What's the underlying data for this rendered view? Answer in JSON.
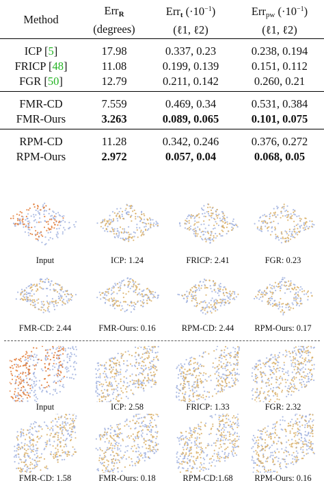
{
  "table": {
    "headers": [
      {
        "main": "Method",
        "symbol": "",
        "sub": "",
        "suffix": "",
        "line2": ""
      },
      {
        "main": "Err",
        "symbol": "",
        "sub": "R",
        "suffix": "",
        "line2": "(degrees)"
      },
      {
        "main": "Err",
        "symbol": "",
        "sub": "t",
        "suffix": "(·10",
        "sup": "−1",
        "close": ")",
        "line2": "(ℓ1, ℓ2)"
      },
      {
        "main": "Err",
        "symbol": "",
        "sub": "pw",
        "suffix": "(·10",
        "sup": "−1",
        "close": ")",
        "line2": "(ℓ1, ℓ2)"
      }
    ],
    "rows": [
      {
        "method": "ICP",
        "cite": "5",
        "r": "17.98",
        "t": "0.337, 0.23",
        "pw": "0.238, 0.194",
        "bold": false
      },
      {
        "method": "FRICP",
        "cite": "48",
        "r": "11.08",
        "t": "0.199, 0.139",
        "pw": "0.151, 0.112",
        "bold": false
      },
      {
        "method": "FGR",
        "cite": "50",
        "r": "12.79",
        "t": "0.211, 0.142",
        "pw": "0.260, 0.21",
        "bold": false
      },
      {
        "method": "FMR-CD",
        "cite": "",
        "r": "7.559",
        "t": "0.469, 0.34",
        "pw": "0.531, 0.384",
        "bold": false
      },
      {
        "method": "FMR-Ours",
        "cite": "",
        "r": "3.263",
        "t": "0.089, 0.065",
        "pw": "0.101, 0.075",
        "bold": true
      },
      {
        "method": "RPM-CD",
        "cite": "",
        "r": "11.28",
        "t": "0.342, 0.246",
        "pw": "0.376, 0.272",
        "bold": false
      },
      {
        "method": "RPM-Ours",
        "cite": "",
        "r": "2.972",
        "t": "0.057, 0.04",
        "pw": "0.068, 0.05",
        "bold": true
      }
    ]
  },
  "figure": {
    "colors": {
      "source": "#e0762e",
      "target": "#9fb0de",
      "aligned": "#d8ad63"
    },
    "example1": {
      "row1": [
        "Input",
        "ICP: 1.24",
        "FRICP: 2.41",
        "FGR: 0.23"
      ],
      "row2": [
        "FMR-CD: 2.44",
        "FMR-Ours: 0.16",
        "RPM-CD: 2.44",
        "RPM-Ours: 0.17"
      ]
    },
    "example2": {
      "row1": [
        "Input",
        "ICP: 2.58",
        "FRICP: 1.33",
        "FGR: 2.32"
      ],
      "row2": [
        "FMR-CD: 1.58",
        "FMR-Ours: 0.18",
        "RPM-CD:1.68",
        "RPM-Ours: 0.16"
      ]
    }
  }
}
